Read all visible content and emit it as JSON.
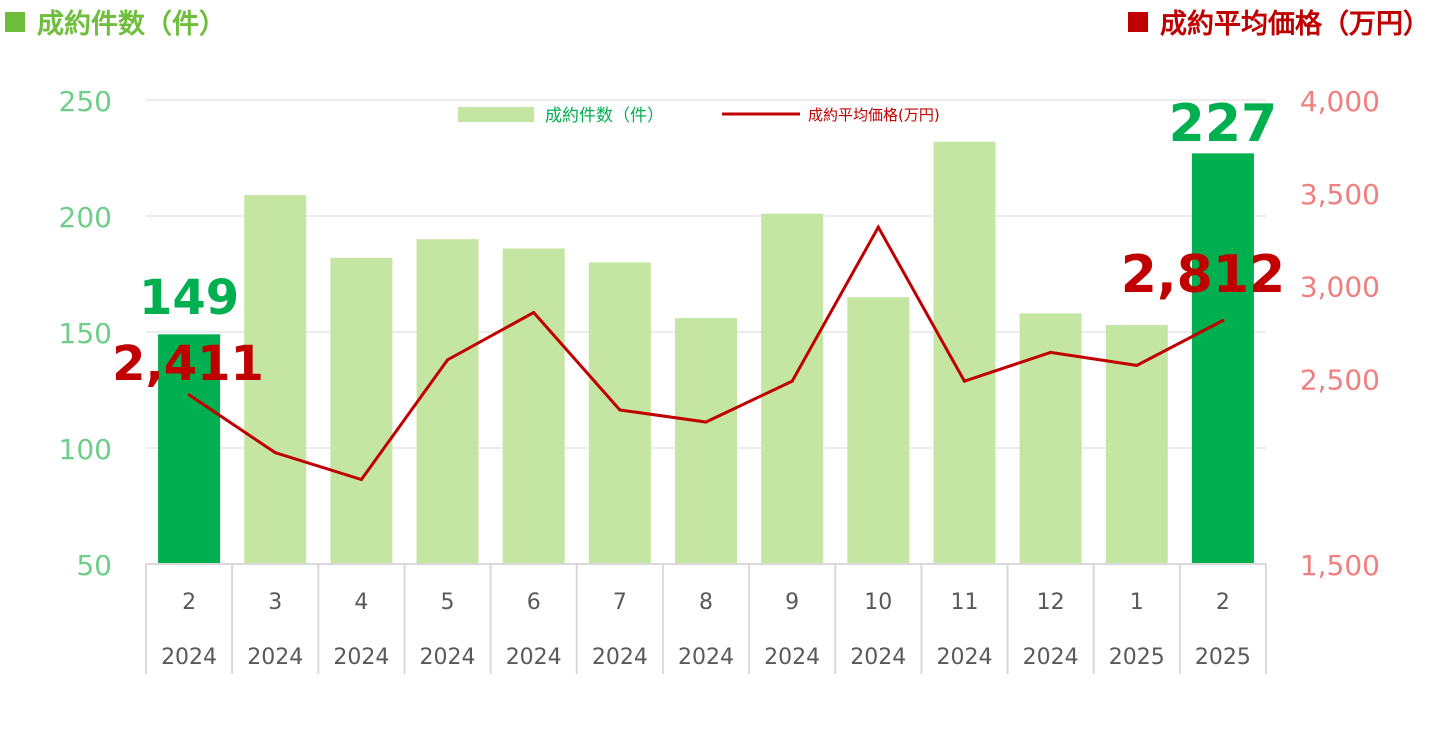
{
  "header": {
    "left_title": "成約件数（件）",
    "right_title": "成約平均価格（万円）",
    "left_color": "#6ebe3c",
    "right_color": "#c00000"
  },
  "chart_data": {
    "type": "bar+line",
    "categories": [
      {
        "month": "2",
        "year": "2024"
      },
      {
        "month": "3",
        "year": "2024"
      },
      {
        "month": "4",
        "year": "2024"
      },
      {
        "month": "5",
        "year": "2024"
      },
      {
        "month": "6",
        "year": "2024"
      },
      {
        "month": "7",
        "year": "2024"
      },
      {
        "month": "8",
        "year": "2024"
      },
      {
        "month": "9",
        "year": "2024"
      },
      {
        "month": "10",
        "year": "2024"
      },
      {
        "month": "11",
        "year": "2024"
      },
      {
        "month": "12",
        "year": "2024"
      },
      {
        "month": "1",
        "year": "2025"
      },
      {
        "month": "2",
        "year": "2025"
      }
    ],
    "series": [
      {
        "name": "成約件数（件）",
        "type": "bar",
        "axis": "left",
        "values": [
          149,
          209,
          182,
          190,
          186,
          180,
          156,
          201,
          165,
          232,
          158,
          153,
          227
        ],
        "color": "#c5e5a2",
        "highlight_color": "#00b050",
        "highlight_indices": [
          0,
          12
        ]
      },
      {
        "name": "成約平均価格(万円)",
        "type": "line",
        "axis": "right",
        "values": [
          2411,
          2100,
          1955,
          2600,
          2855,
          2330,
          2265,
          2485,
          3315,
          2485,
          2640,
          2570,
          2812
        ],
        "color": "#c00000"
      }
    ],
    "left_axis": {
      "min": 50,
      "max": 250,
      "ticks": [
        "250",
        "200",
        "150",
        "100",
        "50"
      ],
      "color": "#6fcf8a"
    },
    "right_axis": {
      "min": 1500,
      "max": 4000,
      "ticks": [
        "4,000",
        "3,500",
        "3,000",
        "2,500",
        "1,500"
      ],
      "color": "#f08080"
    },
    "annotations": {
      "bar_first": "149",
      "bar_last": "227",
      "line_first": "2,411",
      "line_last": "2,812"
    },
    "legend_placement": "top-center",
    "grid": true
  }
}
